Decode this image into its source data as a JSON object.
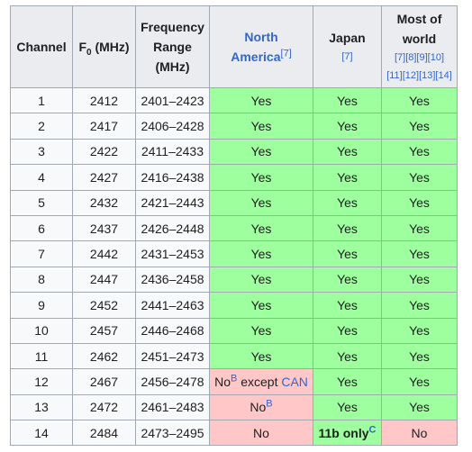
{
  "headers": {
    "channel": "Channel",
    "f0_prefix": "F",
    "f0_sub": "0",
    "f0_suffix": " (MHz)",
    "freq_line1": "Frequency",
    "freq_line2": "Range",
    "freq_line3": "(MHz)",
    "na_line1": "North",
    "na_line2": "America",
    "na_ref": "[7]",
    "jp_label": "Japan",
    "jp_ref": "[7]",
    "world_line1": "Most of",
    "world_line2": "world",
    "world_ref1": "[7][8][9][10]",
    "world_ref2": "[11][12][13][14]"
  },
  "rows": [
    {
      "channel": "1",
      "f0": "2412",
      "range": "2401–2423",
      "na": "Yes",
      "jp": "Yes",
      "world": "Yes"
    },
    {
      "channel": "2",
      "f0": "2417",
      "range": "2406–2428",
      "na": "Yes",
      "jp": "Yes",
      "world": "Yes"
    },
    {
      "channel": "3",
      "f0": "2422",
      "range": "2411–2433",
      "na": "Yes",
      "jp": "Yes",
      "world": "Yes"
    },
    {
      "channel": "4",
      "f0": "2427",
      "range": "2416–2438",
      "na": "Yes",
      "jp": "Yes",
      "world": "Yes"
    },
    {
      "channel": "5",
      "f0": "2432",
      "range": "2421–2443",
      "na": "Yes",
      "jp": "Yes",
      "world": "Yes"
    },
    {
      "channel": "6",
      "f0": "2437",
      "range": "2426–2448",
      "na": "Yes",
      "jp": "Yes",
      "world": "Yes"
    },
    {
      "channel": "7",
      "f0": "2442",
      "range": "2431–2453",
      "na": "Yes",
      "jp": "Yes",
      "world": "Yes"
    },
    {
      "channel": "8",
      "f0": "2447",
      "range": "2436–2458",
      "na": "Yes",
      "jp": "Yes",
      "world": "Yes"
    },
    {
      "channel": "9",
      "f0": "2452",
      "range": "2441–2463",
      "na": "Yes",
      "jp": "Yes",
      "world": "Yes"
    },
    {
      "channel": "10",
      "f0": "2457",
      "range": "2446–2468",
      "na": "Yes",
      "jp": "Yes",
      "world": "Yes"
    },
    {
      "channel": "11",
      "f0": "2462",
      "range": "2451–2473",
      "na": "Yes",
      "jp": "Yes",
      "world": "Yes"
    }
  ],
  "row12": {
    "channel": "12",
    "f0": "2467",
    "range": "2456–2478",
    "na_prefix": "No",
    "na_note": "B",
    "na_mid": " except ",
    "na_link": "CAN",
    "jp": "Yes",
    "world": "Yes"
  },
  "row13": {
    "channel": "13",
    "f0": "2472",
    "range": "2461–2483",
    "na_prefix": "No",
    "na_note": "B",
    "jp": "Yes",
    "world": "Yes"
  },
  "row14": {
    "channel": "14",
    "f0": "2484",
    "range": "2473–2495",
    "na": "No",
    "jp_prefix": "11b only",
    "jp_note": "C",
    "world": "No"
  },
  "colors": {
    "yes_bg": "#9eff9e",
    "no_bg": "#ffc7c7",
    "header_bg": "#eaecf0",
    "cell_bg": "#f8f9fa",
    "border": "#a2a9b1",
    "link": "#3366cc"
  }
}
